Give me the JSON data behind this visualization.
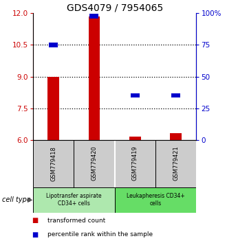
{
  "title": "GDS4079 / 7954065",
  "samples": [
    "GSM779418",
    "GSM779420",
    "GSM779419",
    "GSM779421"
  ],
  "red_values": [
    9.0,
    11.85,
    6.15,
    6.3
  ],
  "blue_values": [
    75.0,
    98.0,
    35.0,
    35.0
  ],
  "ylim_left": [
    6,
    12
  ],
  "ylim_right": [
    0,
    100
  ],
  "yticks_left": [
    6,
    7.5,
    9,
    10.5,
    12
  ],
  "yticks_right": [
    0,
    25,
    50,
    75,
    100
  ],
  "ytick_labels_right": [
    "0",
    "25",
    "50",
    "75",
    "100%"
  ],
  "hlines": [
    7.5,
    9.0,
    10.5
  ],
  "groups": [
    {
      "label": "Lipotransfer aspirate\nCD34+ cells",
      "indices": [
        0,
        1
      ],
      "color": "#aee8ae"
    },
    {
      "label": "Leukapheresis CD34+\ncells",
      "indices": [
        2,
        3
      ],
      "color": "#66dd66"
    }
  ],
  "red_color": "#cc0000",
  "blue_color": "#0000cc",
  "legend_red_label": "transformed count",
  "legend_blue_label": "percentile rank within the sample",
  "cell_type_label": "cell type",
  "left_tick_color": "#cc0000",
  "right_tick_color": "#0000cc",
  "title_fontsize": 10,
  "tick_fontsize": 7.5,
  "sample_fontsize": 6,
  "group_fontsize": 5.5,
  "legend_fontsize": 6.5
}
